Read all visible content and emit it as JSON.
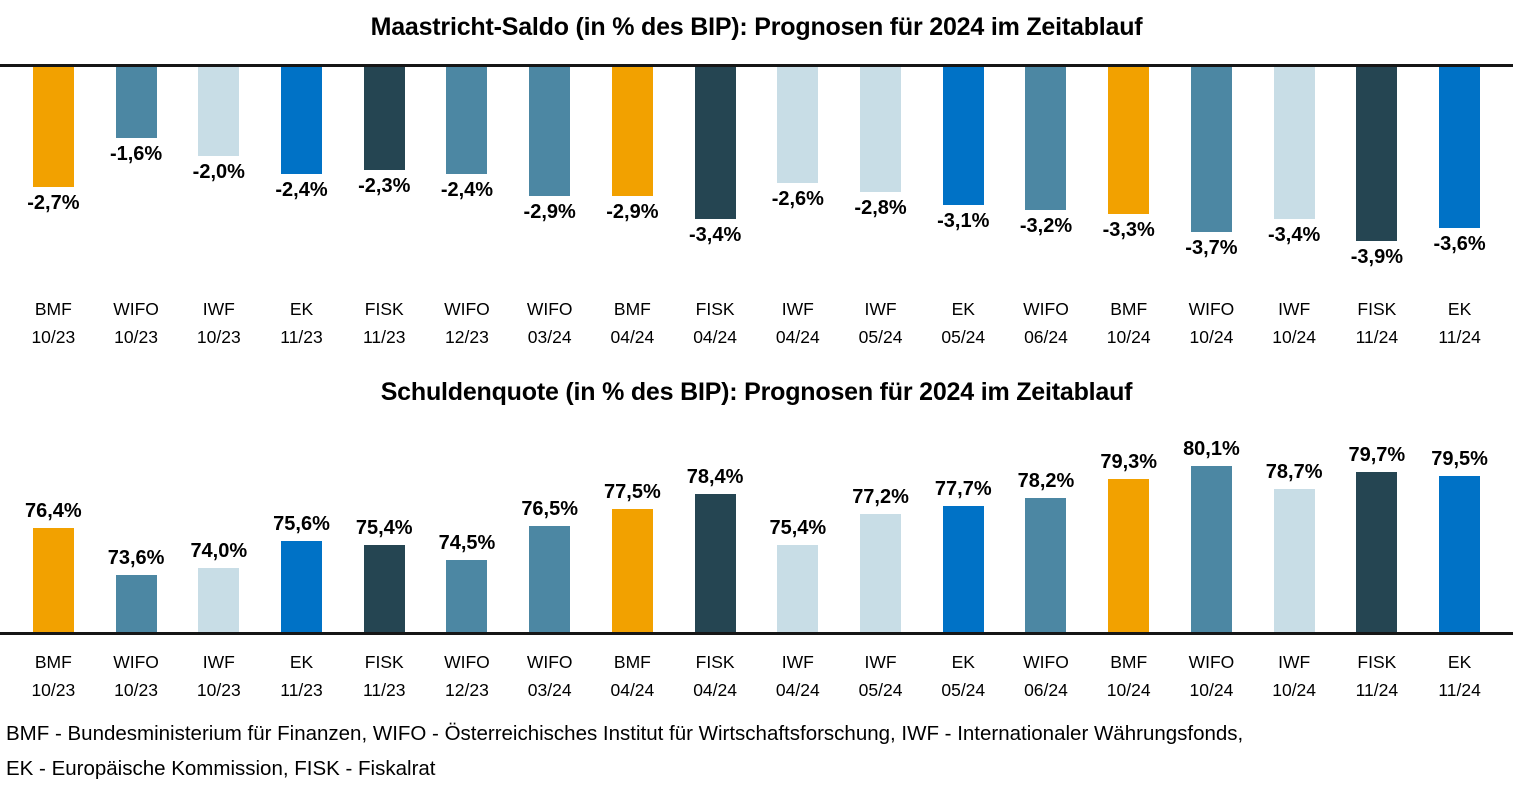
{
  "colors": {
    "institutions": {
      "BMF": "#F2A100",
      "WIFO": "#4C87A3",
      "IWF": "#C8DDE6",
      "EK": "#0072C6",
      "FISK": "#254552"
    },
    "axis": "#161616",
    "label": "#000000"
  },
  "footer": {
    "line1": "BMF - Bundesministerium für Finanzen, WIFO - Österreichisches Institut für Wirtschaftsforschung, IWF - Internationaler Währungsfonds,",
    "line2": "EK - Europäische Kommission, FISK - Fiskalrat"
  },
  "chart_data": [
    {
      "type": "bar",
      "title": "Maastricht-Saldo (in % des BIP): Prognosen für 2024 im Zeitablauf",
      "direction": "down",
      "grid": false,
      "legend": false,
      "ylim": [
        -4.8,
        0
      ],
      "categories": [
        {
          "source": "BMF",
          "date": "10/23"
        },
        {
          "source": "WIFO",
          "date": "10/23"
        },
        {
          "source": "IWF",
          "date": "10/23"
        },
        {
          "source": "EK",
          "date": "11/23"
        },
        {
          "source": "FISK",
          "date": "11/23"
        },
        {
          "source": "WIFO",
          "date": "12/23"
        },
        {
          "source": "WIFO",
          "date": "03/24"
        },
        {
          "source": "BMF",
          "date": "04/24"
        },
        {
          "source": "FISK",
          "date": "04/24"
        },
        {
          "source": "IWF",
          "date": "04/24"
        },
        {
          "source": "IWF",
          "date": "05/24"
        },
        {
          "source": "EK",
          "date": "05/24"
        },
        {
          "source": "WIFO",
          "date": "06/24"
        },
        {
          "source": "BMF",
          "date": "10/24"
        },
        {
          "source": "WIFO",
          "date": "10/24"
        },
        {
          "source": "IWF",
          "date": "10/24"
        },
        {
          "source": "FISK",
          "date": "11/24"
        },
        {
          "source": "EK",
          "date": "11/24"
        }
      ],
      "values": [
        -2.7,
        -1.6,
        -2.0,
        -2.4,
        -2.3,
        -2.4,
        -2.9,
        -2.9,
        -3.4,
        -2.6,
        -2.8,
        -3.1,
        -3.2,
        -3.3,
        -3.7,
        -3.4,
        -3.9,
        -3.6
      ],
      "labels": [
        "-2,7%",
        "-1,6%",
        "-2,0%",
        "-2,4%",
        "-2,3%",
        "-2,4%",
        "-2,9%",
        "-2,9%",
        "-3,4%",
        "-2,6%",
        "-2,8%",
        "-3,1%",
        "-3,2%",
        "-3,3%",
        "-3,7%",
        "-3,4%",
        "-3,9%",
        "-3,6%"
      ]
    },
    {
      "type": "bar",
      "title": "Schuldenquote (in % des BIP): Prognosen für 2024 im Zeitablauf",
      "direction": "up",
      "grid": false,
      "legend": false,
      "ylim": [
        70,
        82
      ],
      "categories": [
        {
          "source": "BMF",
          "date": "10/23"
        },
        {
          "source": "WIFO",
          "date": "10/23"
        },
        {
          "source": "IWF",
          "date": "10/23"
        },
        {
          "source": "EK",
          "date": "11/23"
        },
        {
          "source": "FISK",
          "date": "11/23"
        },
        {
          "source": "WIFO",
          "date": "12/23"
        },
        {
          "source": "WIFO",
          "date": "03/24"
        },
        {
          "source": "BMF",
          "date": "04/24"
        },
        {
          "source": "FISK",
          "date": "04/24"
        },
        {
          "source": "IWF",
          "date": "04/24"
        },
        {
          "source": "IWF",
          "date": "05/24"
        },
        {
          "source": "EK",
          "date": "05/24"
        },
        {
          "source": "WIFO",
          "date": "06/24"
        },
        {
          "source": "BMF",
          "date": "10/24"
        },
        {
          "source": "WIFO",
          "date": "10/24"
        },
        {
          "source": "IWF",
          "date": "10/24"
        },
        {
          "source": "FISK",
          "date": "11/24"
        },
        {
          "source": "EK",
          "date": "11/24"
        }
      ],
      "values": [
        76.4,
        73.6,
        74.0,
        75.6,
        75.4,
        74.5,
        76.5,
        77.5,
        78.4,
        75.4,
        77.2,
        77.7,
        78.2,
        79.3,
        80.1,
        78.7,
        79.7,
        79.5
      ],
      "labels": [
        "76,4%",
        "73,6%",
        "74,0%",
        "75,6%",
        "75,4%",
        "74,5%",
        "76,5%",
        "77,5%",
        "78,4%",
        "75,4%",
        "77,2%",
        "77,7%",
        "78,2%",
        "79,3%",
        "80,1%",
        "78,7%",
        "79,7%",
        "79,5%"
      ]
    }
  ]
}
